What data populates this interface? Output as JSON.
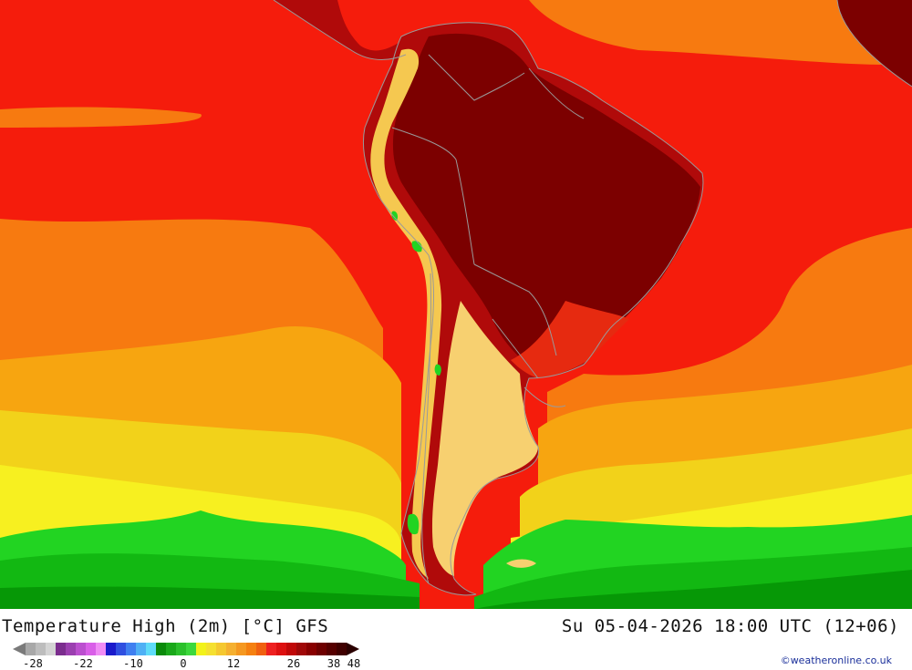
{
  "title": "Temperature High (2m) [°C] GFS",
  "datetime": "Su 05-04-2026 18:00 UTC (12+06)",
  "credit": "©weatheronline.co.uk",
  "legend": {
    "colors": [
      "#a8a8a8",
      "#bdbdbd",
      "#d4d4d4",
      "#7b2d8e",
      "#9b3fb0",
      "#bb4fcf",
      "#d95fe8",
      "#f08cf5",
      "#1a1acb",
      "#2f4fe0",
      "#3f7ff0",
      "#4fb0f5",
      "#5fdcf8",
      "#0a8a0a",
      "#1aa81a",
      "#2bc02b",
      "#3cd83c",
      "#f2f21a",
      "#f5e030",
      "#f5c830",
      "#f5b030",
      "#f59820",
      "#f58010",
      "#f06010",
      "#ee2020",
      "#dd1010",
      "#c00808",
      "#a00808",
      "#880000",
      "#6e0000",
      "#560000",
      "#400000"
    ],
    "ticks": [
      {
        "label": "-28",
        "index": 0
      },
      {
        "label": "-22",
        "index": 5
      },
      {
        "label": "-10",
        "index": 10
      },
      {
        "label": "0",
        "index": 15
      },
      {
        "label": "12",
        "index": 20
      },
      {
        "label": "26",
        "index": 26
      },
      {
        "label": "38",
        "index": 30
      },
      {
        "label": "48",
        "index": 32
      }
    ]
  },
  "map": {
    "region": "South America",
    "colors": {
      "ocean_hot": "#f51c0c",
      "ocean_orange": "#f77a10",
      "ocean_amber": "#f7a510",
      "ocean_yellow": "#f2d21a",
      "ocean_yellow2": "#f7f020",
      "green_light": "#22d422",
      "green_mid": "#12b812",
      "green_dark": "#069806",
      "land_hot": "#b00a0a",
      "land_darkest": "#7c0000",
      "land_warm": "#e62a10",
      "andes": "#f5c850",
      "patagonia": "#f7d070",
      "borders": "#9a9a9a"
    }
  }
}
